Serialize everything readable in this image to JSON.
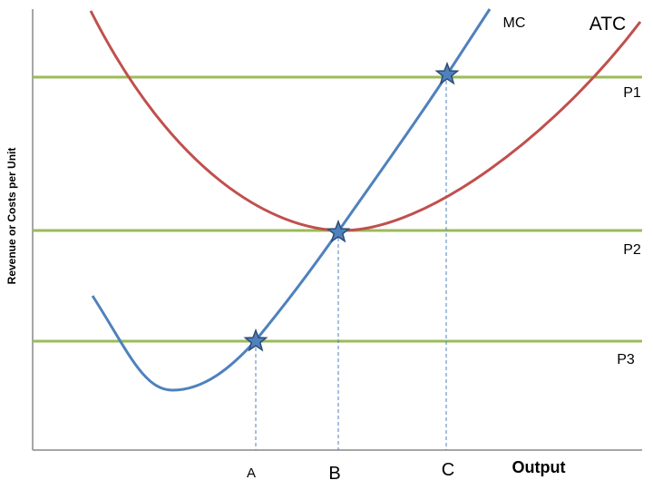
{
  "axis": {
    "y_label": "Revenue or Costs per Unit",
    "x_label": "Output"
  },
  "curves": {
    "mc": "MC",
    "atc": "ATC"
  },
  "prices": [
    "P1",
    "P2",
    "P3"
  ],
  "quantities": [
    "A",
    "B",
    "C"
  ]
}
